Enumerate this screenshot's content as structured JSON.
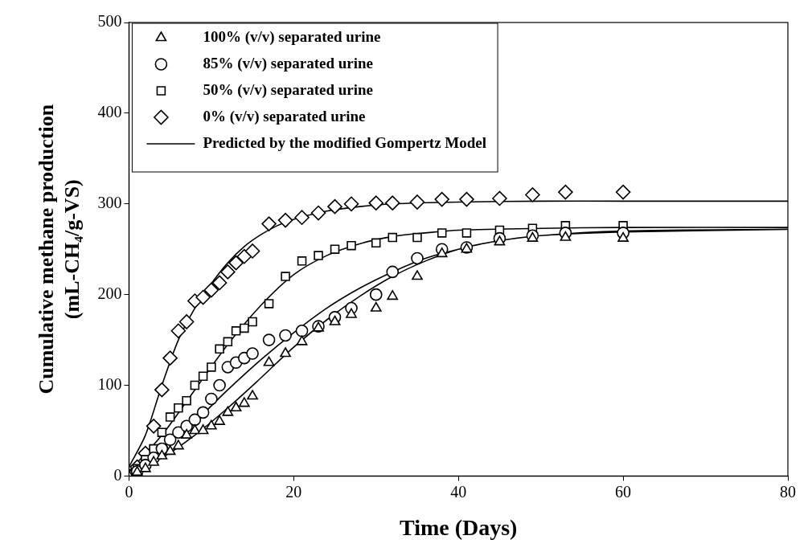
{
  "chart_data": {
    "type": "scatter",
    "x_label": "Time (Days)",
    "y_label": [
      "Cumulative methane production",
      "(mL-CH₄/g-VS)"
    ],
    "xlim": [
      0,
      80
    ],
    "xticks": [
      0,
      20,
      40,
      60,
      80
    ],
    "ylim": [
      0,
      500
    ],
    "yticks": [
      0,
      100,
      200,
      300,
      400,
      500
    ],
    "grid": false,
    "legend": "upper left",
    "series": [
      {
        "name": "100% (v/v) separated urine",
        "color": "#000000",
        "marker": "triangle",
        "x": [
          0,
          1,
          2,
          3,
          4,
          5,
          6,
          7,
          8,
          9,
          10,
          11,
          12,
          13,
          14,
          15,
          17,
          19,
          21,
          23,
          25,
          27,
          30,
          32,
          35,
          38,
          41,
          45,
          49,
          53,
          60
        ],
        "values": [
          0,
          4,
          8,
          15,
          22,
          27,
          33,
          45,
          50,
          50,
          55,
          60,
          70,
          75,
          80,
          88,
          125,
          135,
          148,
          163,
          170,
          178,
          185,
          198,
          220,
          245,
          250,
          258,
          262,
          263,
          262
        ]
      },
      {
        "name": "85% (v/v) separated urine",
        "color": "#000000",
        "marker": "circle",
        "x": [
          0,
          1,
          2,
          3,
          4,
          5,
          6,
          7,
          8,
          9,
          10,
          11,
          12,
          13,
          14,
          15,
          17,
          19,
          21,
          23,
          25,
          27,
          30,
          32,
          35,
          38,
          41,
          45,
          49,
          53,
          60
        ],
        "values": [
          0,
          5,
          12,
          20,
          30,
          40,
          48,
          55,
          62,
          70,
          85,
          100,
          120,
          125,
          130,
          135,
          150,
          155,
          160,
          165,
          175,
          185,
          200,
          225,
          240,
          250,
          252,
          262,
          265,
          268,
          268
        ]
      },
      {
        "name": "50% (v/v) separated urine",
        "color": "#000000",
        "marker": "square",
        "x": [
          0,
          1,
          2,
          3,
          4,
          5,
          6,
          7,
          8,
          9,
          10,
          11,
          12,
          13,
          14,
          15,
          17,
          19,
          21,
          23,
          25,
          27,
          30,
          32,
          35,
          38,
          41,
          45,
          49,
          53,
          60
        ],
        "values": [
          0,
          8,
          18,
          30,
          48,
          65,
          75,
          83,
          100,
          110,
          120,
          140,
          148,
          160,
          163,
          170,
          190,
          220,
          237,
          243,
          250,
          254,
          257,
          263,
          263,
          268,
          268,
          271,
          273,
          276,
          276
        ]
      },
      {
        "name": "0% (v/v) separated urine",
        "color": "#000000",
        "marker": "diamond",
        "x": [
          0,
          1,
          2,
          3,
          4,
          5,
          6,
          7,
          8,
          9,
          10,
          11,
          12,
          13,
          14,
          15,
          17,
          19,
          21,
          23,
          25,
          27,
          30,
          32,
          35,
          38,
          41,
          45,
          49,
          53,
          60
        ],
        "values": [
          0,
          10,
          25,
          55,
          95,
          130,
          160,
          170,
          193,
          197,
          205,
          213,
          225,
          235,
          242,
          248,
          278,
          282,
          285,
          290,
          297,
          300,
          301,
          301,
          302,
          305,
          305,
          306,
          310,
          313,
          313
        ]
      },
      {
        "name": "Predicted by the modified Gompertz Model",
        "color": "#000000",
        "type": "line",
        "line_style": "solid",
        "x": [
          0,
          2,
          4,
          6,
          8,
          10,
          12,
          14,
          16,
          18,
          20,
          24,
          28,
          32,
          40,
          50,
          60,
          80,
          80,
          0,
          4,
          8,
          12,
          16,
          20,
          24,
          28,
          32,
          36,
          40,
          50,
          60,
          80,
          80,
          0,
          4,
          8,
          12,
          16,
          20,
          24,
          28,
          32,
          36,
          40,
          44,
          50,
          60,
          80,
          80,
          0,
          4,
          8,
          12,
          16,
          20,
          24,
          28,
          32,
          36,
          40,
          44,
          50,
          60,
          80
        ],
        "values": [
          10,
          45,
          100,
          150,
          185,
          212,
          235,
          253,
          266,
          276,
          283,
          292,
          297,
          300,
          302,
          303,
          303,
          303,
          null,
          5,
          45,
          95,
          145,
          188,
          222,
          243,
          256,
          264,
          268,
          271,
          273,
          274,
          274,
          null,
          5,
          30,
          60,
          95,
          128,
          158,
          185,
          207,
          225,
          240,
          250,
          258,
          265,
          269,
          272,
          null,
          3,
          20,
          45,
          75,
          108,
          142,
          172,
          198,
          220,
          237,
          250,
          258,
          265,
          270,
          272
        ]
      }
    ]
  }
}
